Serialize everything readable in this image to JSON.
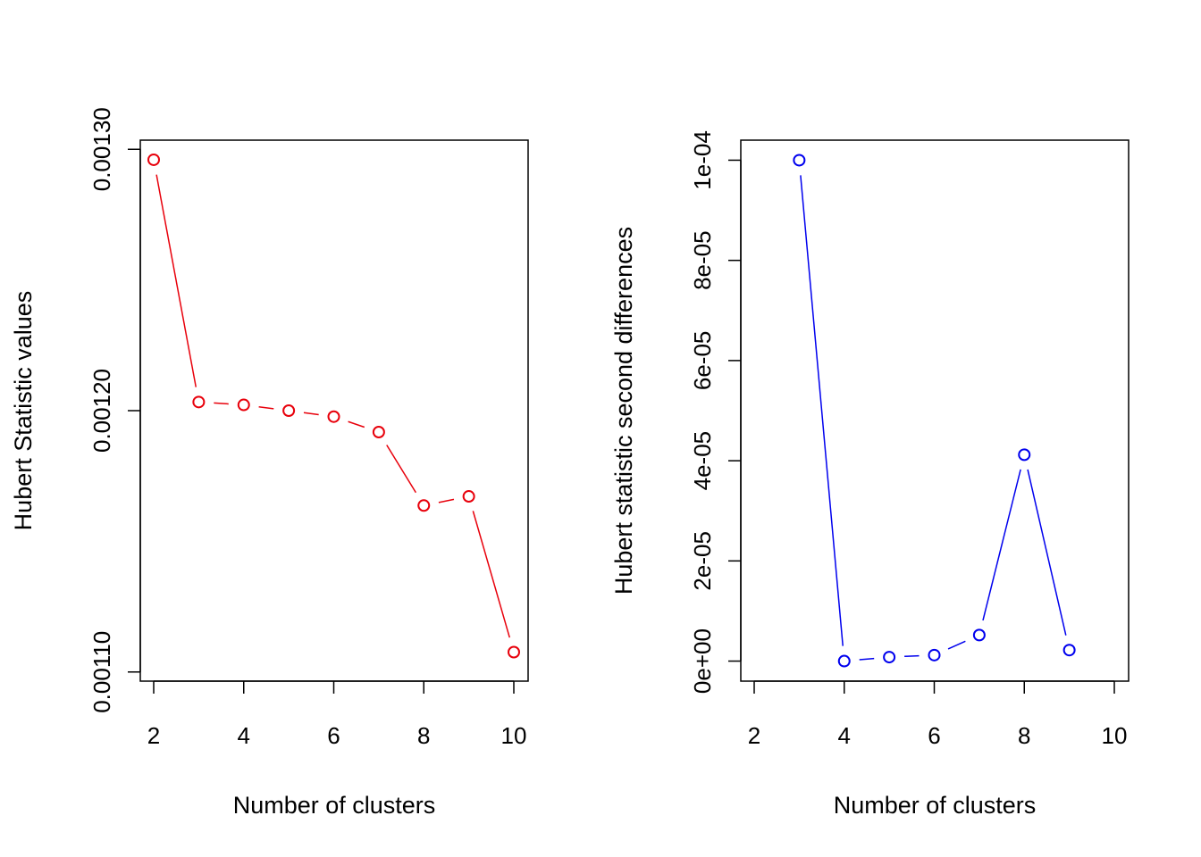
{
  "chart_data": [
    {
      "type": "line",
      "xlabel": "Number of clusters",
      "ylabel": "Hubert Statistic values",
      "xlim": [
        2,
        10
      ],
      "ylim": [
        0.0010965,
        0.0013035
      ],
      "xticks": [
        2,
        4,
        6,
        8,
        10
      ],
      "xtick_labels": [
        "2",
        "4",
        "6",
        "8",
        "10"
      ],
      "yticks": [
        0.0011,
        0.0012,
        0.0013
      ],
      "ytick_labels": [
        "0.00110",
        "0.00120",
        "0.00130"
      ],
      "grid": false,
      "color": "#e8000b",
      "x": [
        2,
        3,
        4,
        5,
        6,
        7,
        8,
        9,
        10
      ],
      "y": [
        0.001296,
        0.0012033,
        0.0012022,
        0.0012,
        0.0011977,
        0.0011918,
        0.0011637,
        0.0011672,
        0.0011076
      ]
    },
    {
      "type": "line",
      "xlabel": "Number of clusters",
      "ylabel": "Hubert statistic second differences",
      "xlim": [
        2,
        10
      ],
      "ylim": [
        -4e-06,
        0.000104
      ],
      "xticks": [
        2,
        4,
        6,
        8,
        10
      ],
      "xtick_labels": [
        "2",
        "4",
        "6",
        "8",
        "10"
      ],
      "yticks": [
        0,
        2e-05,
        4e-05,
        6e-05,
        8e-05,
        0.0001
      ],
      "ytick_labels": [
        "0e+00",
        "2e-05",
        "4e-05",
        "6e-05",
        "8e-05",
        "1e-04"
      ],
      "grid": false,
      "color": "#0000ee",
      "x": [
        3,
        4,
        5,
        6,
        7,
        8,
        9
      ],
      "y": [
        0.0001,
        0.0,
        8e-07,
        1.2e-06,
        5.2e-06,
        4.12e-05,
        2.2e-06
      ]
    }
  ]
}
